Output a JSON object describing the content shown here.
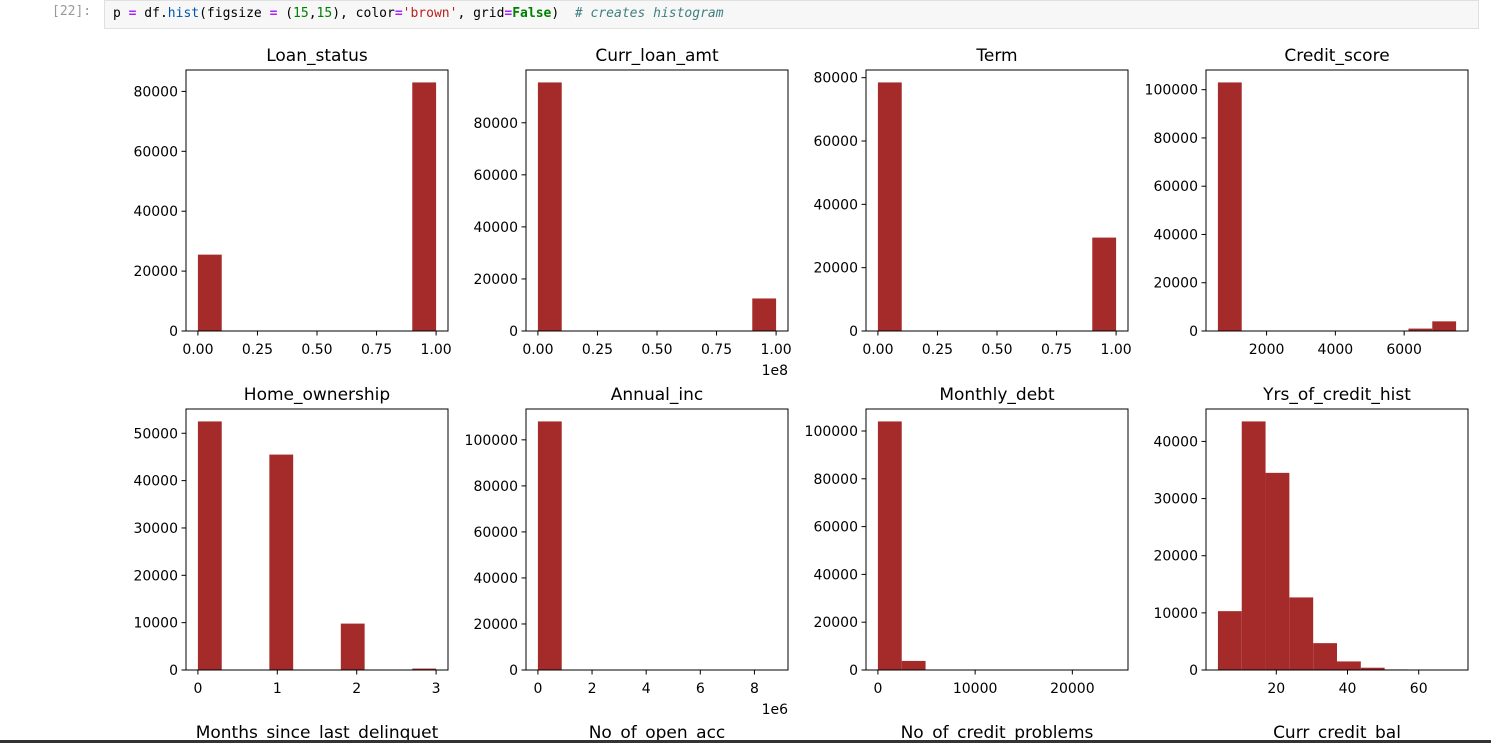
{
  "cell": {
    "prompt": "[22]:",
    "code_tokens": [
      "p ",
      "=",
      " df.",
      "hist",
      "(figsize ",
      "=",
      " (",
      "15",
      ",",
      "15",
      "), color",
      "=",
      "'brown'",
      ", grid",
      "=",
      "False",
      ")  ",
      "# creates histogram"
    ]
  },
  "chart_data": [
    {
      "type": "histogram",
      "title": "Loan_status",
      "color": "#a52a2a",
      "grid": false,
      "bins": [
        0,
        0.1,
        0.2,
        0.3,
        0.4,
        0.5,
        0.6,
        0.7,
        0.8,
        0.9,
        1
      ],
      "counts": [
        25500,
        0,
        0,
        0,
        0,
        0,
        0,
        0,
        0,
        83000
      ],
      "xlim": [
        -0.05,
        1.05
      ],
      "ylim": [
        0,
        87150
      ],
      "xticks": [
        {
          "value": 0,
          "label": "0.00"
        },
        {
          "value": 0.25,
          "label": "0.25"
        },
        {
          "value": 0.5,
          "label": "0.50"
        },
        {
          "value": 0.75,
          "label": "0.75"
        },
        {
          "value": 1,
          "label": "1.00"
        }
      ],
      "yticks": [
        0,
        20000,
        40000,
        60000,
        80000
      ]
    },
    {
      "type": "histogram",
      "title": "Curr_loan_amt",
      "color": "#a52a2a",
      "grid": false,
      "x_offset_label": "1e8",
      "bins": [
        0,
        10000000,
        20000000,
        30000000,
        40000000,
        50000000,
        60000000,
        70000000,
        80000000,
        90000000,
        100000000
      ],
      "counts": [
        95500,
        0,
        0,
        0,
        0,
        0,
        0,
        0,
        0,
        12500
      ],
      "xlim": [
        -5000000,
        105000000
      ],
      "ylim": [
        0,
        100275
      ],
      "xticks": [
        {
          "value": 0,
          "label": "0.00"
        },
        {
          "value": 25000000,
          "label": "0.25"
        },
        {
          "value": 50000000,
          "label": "0.50"
        },
        {
          "value": 75000000,
          "label": "0.75"
        },
        {
          "value": 100000000,
          "label": "1.00"
        }
      ],
      "yticks": [
        0,
        20000,
        40000,
        60000,
        80000
      ]
    },
    {
      "type": "histogram",
      "title": "Term",
      "color": "#a52a2a",
      "grid": false,
      "bins": [
        0,
        0.1,
        0.2,
        0.3,
        0.4,
        0.5,
        0.6,
        0.7,
        0.8,
        0.9,
        1
      ],
      "counts": [
        78500,
        0,
        0,
        0,
        0,
        0,
        0,
        0,
        0,
        29500
      ],
      "xlim": [
        -0.05,
        1.05
      ],
      "ylim": [
        0,
        82425
      ],
      "xticks": [
        {
          "value": 0,
          "label": "0.00"
        },
        {
          "value": 0.25,
          "label": "0.25"
        },
        {
          "value": 0.5,
          "label": "0.50"
        },
        {
          "value": 0.75,
          "label": "0.75"
        },
        {
          "value": 1,
          "label": "1.00"
        }
      ],
      "yticks": [
        0,
        20000,
        40000,
        60000,
        80000
      ]
    },
    {
      "type": "histogram",
      "title": "Credit_score",
      "color": "#a52a2a",
      "grid": false,
      "bins": [
        585,
        1277.5,
        1970,
        2662.5,
        3355,
        4047.5,
        4740,
        5432.5,
        6125,
        6817.5,
        7510
      ],
      "counts": [
        103000,
        0,
        0,
        0,
        0,
        0,
        0,
        0,
        1000,
        4000
      ],
      "xlim": [
        239,
        7856
      ],
      "ylim": [
        0,
        108150
      ],
      "xticks": [
        2000,
        4000,
        6000
      ],
      "yticks": [
        0,
        20000,
        40000,
        60000,
        80000,
        100000
      ]
    },
    {
      "type": "histogram",
      "title": "Home_ownership",
      "color": "#a52a2a",
      "grid": false,
      "bins": [
        0,
        0.3,
        0.6,
        0.9,
        1.2,
        1.5,
        1.8,
        2.1,
        2.4,
        2.7,
        3
      ],
      "counts": [
        52500,
        0,
        0,
        45500,
        0,
        0,
        9800,
        0,
        0,
        300
      ],
      "xlim": [
        -0.15,
        3.15
      ],
      "ylim": [
        0,
        55125
      ],
      "xticks": [
        0,
        1,
        2,
        3
      ],
      "yticks": [
        0,
        10000,
        20000,
        30000,
        40000,
        50000
      ]
    },
    {
      "type": "histogram",
      "title": "Annual_inc",
      "color": "#a52a2a",
      "grid": false,
      "x_offset_label": "1e6",
      "bins": [
        0,
        880000,
        1760000,
        2640000,
        3520000,
        4400000,
        5280000,
        6160000,
        7040000,
        7920000,
        8800000
      ],
      "counts": [
        108000,
        0,
        0,
        0,
        0,
        0,
        0,
        0,
        0,
        0
      ],
      "xlim": [
        -440000,
        9240000
      ],
      "ylim": [
        0,
        113400
      ],
      "xticks": [
        0,
        {
          "value": 2000000,
          "label": "2"
        },
        {
          "value": 4000000,
          "label": "4"
        },
        {
          "value": 6000000,
          "label": "6"
        },
        {
          "value": 8000000,
          "label": "8"
        }
      ],
      "yticks": [
        0,
        20000,
        40000,
        60000,
        80000,
        100000
      ]
    },
    {
      "type": "histogram",
      "title": "Monthly_debt",
      "color": "#a52a2a",
      "grid": false,
      "bins": [
        0,
        2450,
        4900,
        7350,
        9800,
        12250,
        14700,
        17150,
        19600,
        22050,
        24500
      ],
      "counts": [
        104000,
        3800,
        0,
        0,
        0,
        0,
        0,
        0,
        0,
        0
      ],
      "xlim": [
        -1225,
        25725
      ],
      "ylim": [
        0,
        109200
      ],
      "xticks": [
        0,
        10000,
        20000
      ],
      "yticks": [
        0,
        20000,
        40000,
        60000,
        80000,
        100000
      ]
    },
    {
      "type": "histogram",
      "title": "Yrs_of_credit_hist",
      "color": "#a52a2a",
      "grid": false,
      "bins": [
        3.6,
        10.29,
        16.98,
        23.67,
        30.36,
        37.05,
        43.74,
        50.43,
        57.12,
        63.81,
        70.5
      ],
      "counts": [
        10300,
        43500,
        34500,
        12700,
        4700,
        1500,
        400,
        100,
        20,
        5
      ],
      "xlim": [
        0.25,
        73.85
      ],
      "ylim": [
        0,
        45675
      ],
      "xticks": [
        20,
        40,
        60
      ],
      "yticks": [
        0,
        10000,
        20000,
        30000,
        40000
      ]
    }
  ],
  "more_titles": [
    "Months_since_last_delinquet",
    "No_of_open_acc",
    "No_of_credit_problems",
    "Curr_credit_bal"
  ]
}
